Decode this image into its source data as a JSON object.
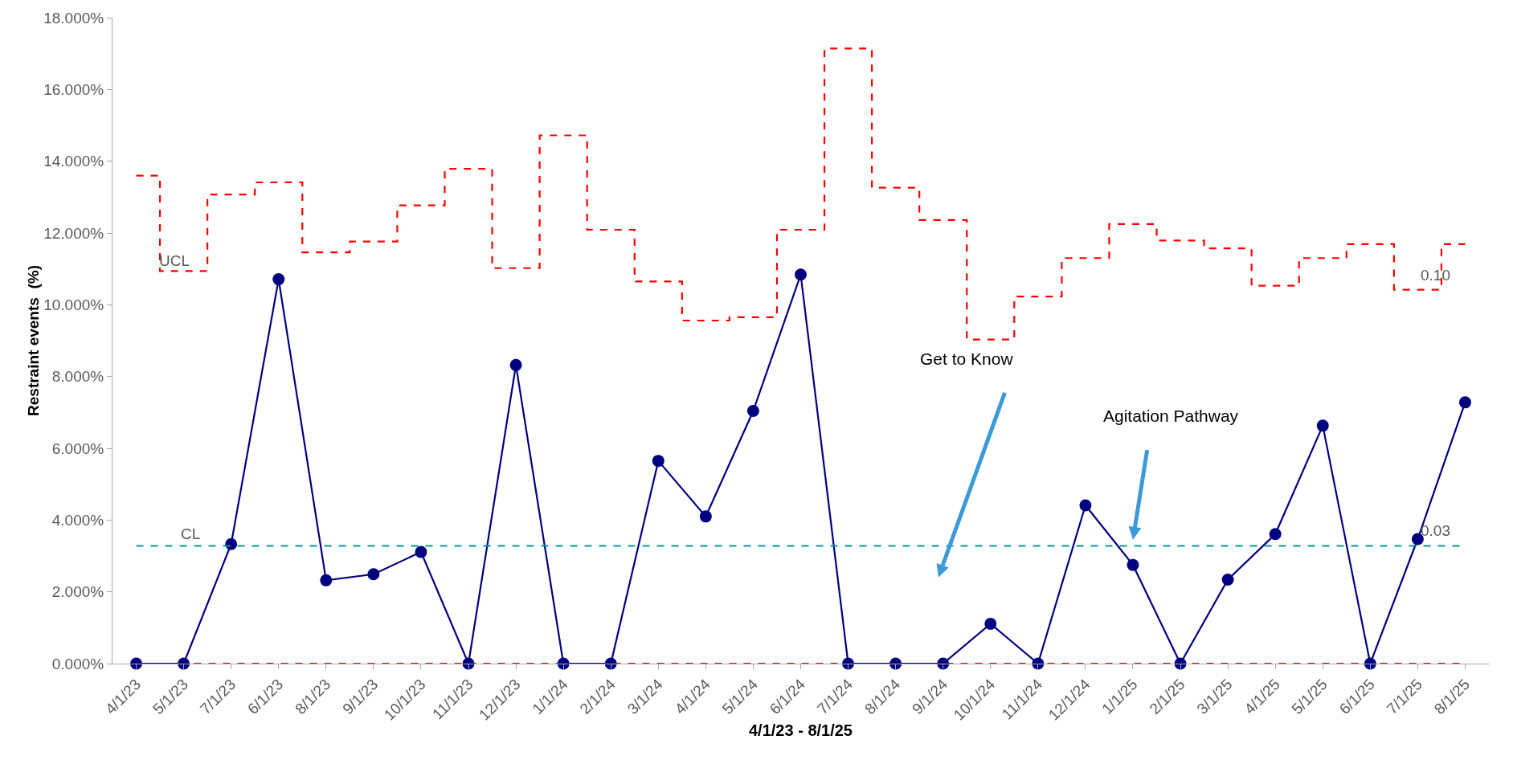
{
  "chart_data": {
    "type": "line",
    "categories": [
      "4/1/23",
      "5/1/23",
      "7/1/23",
      "6/1/23",
      "8/1/23",
      "9/1/23",
      "10/1/23",
      "11/1/23",
      "12/1/23",
      "1/1/24",
      "2/1/24",
      "3/1/24",
      "4/1/24",
      "5/1/24",
      "6/1/24",
      "7/1/24",
      "8/1/24",
      "9/1/24",
      "10/1/24",
      "11/1/24",
      "12/1/24",
      "1/1/25",
      "2/1/25",
      "3/1/25",
      "4/1/25",
      "5/1/25",
      "6/1/25",
      "7/1/25",
      "8/1/25"
    ],
    "series": [
      {
        "type": "step",
        "name": "UCL",
        "color": "#ff0000",
        "line_style": "dashed",
        "marker": "none",
        "values": [
          13.6,
          10.94,
          13.07,
          13.41,
          11.46,
          11.76,
          12.77,
          13.79,
          11.02,
          14.72,
          12.09,
          10.65,
          9.56,
          9.65,
          12.09,
          17.14,
          13.26,
          12.36,
          9.03,
          10.23,
          11.3,
          12.25,
          11.79,
          11.57,
          10.53,
          11.3,
          11.69,
          10.42,
          11.69
        ]
      },
      {
        "type": "step",
        "color": "#ff0000",
        "line_style": "dashed",
        "marker": "none",
        "values": [
          0,
          0,
          0,
          0,
          0,
          0,
          0,
          0,
          0,
          0,
          0,
          0,
          0,
          0,
          0,
          0,
          0,
          0,
          0,
          0,
          0,
          0,
          0,
          0,
          0,
          0,
          0,
          0,
          0
        ]
      },
      {
        "color": "#000080",
        "line_style": "solid",
        "marker": "circle",
        "values": [
          0,
          0,
          3.33,
          10.71,
          2.32,
          2.49,
          3.11,
          0,
          8.32,
          0,
          0,
          5.65,
          4.1,
          7.04,
          10.84,
          0,
          0,
          0,
          1.11,
          0,
          4.41,
          2.75,
          0,
          2.34,
          3.61,
          6.63,
          0,
          3.47,
          7.28
        ]
      }
    ],
    "ref_lines": [
      {
        "axis": "y",
        "value": 3.28,
        "label": "CL",
        "color": "#009999",
        "line_style": "dashed"
      }
    ],
    "annotations": [
      {
        "text": "0.10",
        "x": "7/1/25",
        "y": 10.42
      },
      {
        "text": "0.03",
        "x": "7/1/25",
        "y": 3.28
      },
      "Get to Know",
      "Agitation Pathway"
    ],
    "xlabel": "4/1/23 - 8/1/25",
    "ylabel": "Restraint events  (%)",
    "ylim": [
      0,
      18
    ],
    "yticks": [
      {
        "value": 0,
        "label": "0.000%"
      },
      {
        "value": 2,
        "label": "2.000%"
      },
      {
        "value": 4,
        "label": "4.000%"
      },
      {
        "value": 6,
        "label": "6.000%"
      },
      {
        "value": 8,
        "label": "8.000%"
      },
      {
        "value": 10,
        "label": "10.000%"
      },
      {
        "value": 12,
        "label": "12.000%"
      },
      {
        "value": 14,
        "label": "14.000%"
      },
      {
        "value": 16,
        "label": "16.000%"
      },
      {
        "value": 18,
        "label": "18.000%"
      }
    ],
    "grid": false,
    "legend": false
  }
}
